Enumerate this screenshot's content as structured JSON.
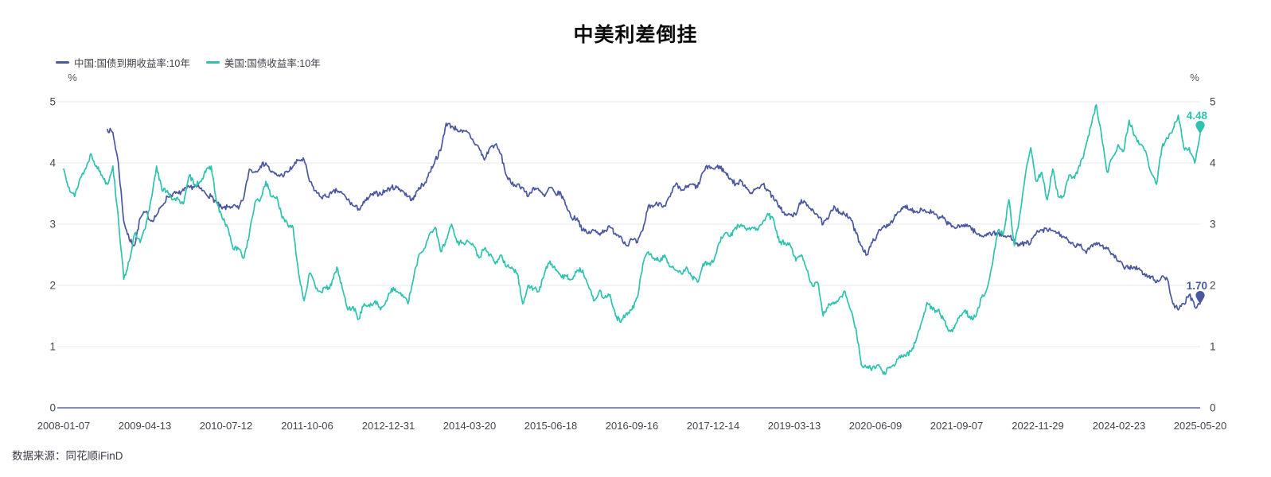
{
  "title": "中美利差倒挂",
  "unit": "%",
  "source": "数据来源：同花顺iFinD",
  "legend": [
    {
      "label": "中国:国债到期收益率:10年",
      "color": "#4A57A0"
    },
    {
      "label": "美国:国债收益率:10年",
      "color": "#2FC2AE"
    }
  ],
  "colors": {
    "china_line": "#4A57A0",
    "us_line": "#2FC2AE",
    "gridline": "#e8e9f0",
    "axis_line": "#5d6b9e",
    "axis_text": "#44454f",
    "title_text": "#0b0b0b"
  },
  "chart_data": {
    "type": "line",
    "title": "中美利差倒挂",
    "ylabel": "%",
    "ylim": [
      0,
      5
    ],
    "y_ticks": [
      0,
      1,
      2,
      3,
      4,
      5
    ],
    "grid": "horizontal",
    "legend_position": "top-left",
    "x_tick_labels": [
      "2008-01-07",
      "2009-04-13",
      "2010-07-12",
      "2011-10-06",
      "2012-12-31",
      "2014-03-20",
      "2015-06-18",
      "2016-09-16",
      "2017-12-14",
      "2019-03-13",
      "2020-06-09",
      "2021-09-07",
      "2022-11-29",
      "2024-02-23",
      "2025-05-20"
    ],
    "cadence": "monthly",
    "series": [
      {
        "name": "中国:国债到期收益率:10年",
        "color": "#4A57A0",
        "start_month": "2008-09",
        "end_month": "2025-05",
        "end_label": "1.70",
        "values": [
          4.55,
          4.5,
          4.0,
          3.05,
          2.75,
          2.66,
          3.1,
          3.2,
          3.05,
          3.15,
          3.3,
          3.45,
          3.5,
          3.5,
          3.55,
          3.6,
          3.62,
          3.58,
          3.5,
          3.45,
          3.35,
          3.25,
          3.28,
          3.3,
          3.25,
          3.45,
          3.9,
          3.85,
          3.95,
          4.0,
          3.85,
          3.8,
          3.8,
          3.85,
          3.95,
          4.05,
          4.05,
          3.7,
          3.55,
          3.45,
          3.45,
          3.5,
          3.55,
          3.5,
          3.4,
          3.3,
          3.25,
          3.35,
          3.45,
          3.5,
          3.5,
          3.55,
          3.6,
          3.6,
          3.55,
          3.45,
          3.4,
          3.6,
          3.65,
          3.85,
          4.05,
          4.2,
          4.65,
          4.6,
          4.55,
          4.5,
          4.5,
          4.35,
          4.25,
          4.05,
          4.25,
          4.3,
          4.15,
          3.8,
          3.65,
          3.65,
          3.6,
          3.45,
          3.6,
          3.55,
          3.45,
          3.6,
          3.5,
          3.5,
          3.3,
          3.1,
          3.1,
          2.9,
          2.85,
          2.9,
          2.85,
          2.9,
          2.95,
          2.85,
          2.8,
          2.65,
          2.75,
          2.7,
          2.9,
          3.3,
          3.3,
          3.35,
          3.3,
          3.45,
          3.65,
          3.55,
          3.6,
          3.65,
          3.6,
          3.85,
          3.95,
          3.9,
          3.95,
          3.85,
          3.75,
          3.65,
          3.7,
          3.6,
          3.5,
          3.6,
          3.65,
          3.55,
          3.4,
          3.3,
          3.15,
          3.15,
          3.15,
          3.4,
          3.3,
          3.25,
          3.15,
          3.0,
          3.1,
          3.3,
          3.2,
          3.15,
          3.1,
          2.85,
          2.65,
          2.5,
          2.7,
          2.85,
          2.95,
          3.0,
          3.1,
          3.2,
          3.3,
          3.25,
          3.2,
          3.25,
          3.2,
          3.2,
          3.1,
          3.1,
          3.0,
          2.95,
          2.95,
          3.0,
          2.95,
          2.85,
          2.8,
          2.85,
          2.85,
          2.85,
          2.8,
          2.8,
          2.75,
          2.65,
          2.7,
          2.7,
          2.85,
          2.9,
          2.9,
          2.9,
          2.85,
          2.8,
          2.7,
          2.65,
          2.65,
          2.55,
          2.65,
          2.7,
          2.65,
          2.6,
          2.5,
          2.4,
          2.3,
          2.3,
          2.3,
          2.25,
          2.15,
          2.15,
          2.05,
          2.15,
          2.1,
          1.7,
          1.6,
          1.7,
          1.85,
          1.65,
          1.7
        ]
      },
      {
        "name": "美国:国债收益率:10年",
        "color": "#2FC2AE",
        "start_month": "2008-01",
        "end_month": "2025-05",
        "end_label": "4.48",
        "values": [
          3.9,
          3.6,
          3.45,
          3.75,
          3.9,
          4.15,
          3.95,
          3.8,
          3.65,
          3.95,
          3.1,
          2.1,
          2.4,
          2.85,
          2.7,
          2.95,
          3.4,
          3.95,
          3.55,
          3.55,
          3.4,
          3.4,
          3.35,
          3.8,
          3.65,
          3.7,
          3.85,
          3.95,
          3.35,
          3.1,
          2.95,
          2.6,
          2.6,
          2.45,
          2.85,
          3.35,
          3.4,
          3.7,
          3.45,
          3.45,
          3.1,
          3.0,
          2.95,
          2.2,
          1.75,
          2.2,
          2.0,
          1.9,
          1.95,
          2.0,
          2.3,
          1.95,
          1.6,
          1.65,
          1.45,
          1.7,
          1.65,
          1.75,
          1.6,
          1.75,
          1.95,
          1.9,
          1.85,
          1.7,
          2.1,
          2.5,
          2.6,
          2.85,
          2.95,
          2.55,
          2.75,
          3.0,
          2.7,
          2.7,
          2.72,
          2.65,
          2.45,
          2.6,
          2.5,
          2.35,
          2.5,
          2.3,
          2.3,
          2.2,
          1.7,
          2.0,
          1.95,
          1.9,
          2.2,
          2.4,
          2.25,
          2.15,
          2.15,
          2.1,
          2.25,
          2.25,
          2.0,
          1.75,
          1.9,
          1.8,
          1.85,
          1.5,
          1.4,
          1.55,
          1.6,
          1.8,
          2.35,
          2.55,
          2.45,
          2.4,
          2.5,
          2.3,
          2.25,
          2.2,
          2.3,
          2.15,
          2.05,
          2.35,
          2.35,
          2.4,
          2.7,
          2.85,
          2.8,
          2.95,
          3.0,
          2.9,
          2.95,
          2.9,
          3.05,
          3.15,
          3.05,
          2.7,
          2.7,
          2.65,
          2.4,
          2.5,
          2.25,
          2.0,
          2.05,
          1.5,
          1.7,
          1.7,
          1.8,
          1.9,
          1.6,
          1.3,
          0.7,
          0.65,
          0.65,
          0.7,
          0.55,
          0.65,
          0.68,
          0.85,
          0.85,
          0.92,
          1.1,
          1.4,
          1.72,
          1.6,
          1.6,
          1.45,
          1.25,
          1.3,
          1.5,
          1.6,
          1.45,
          1.5,
          1.8,
          1.95,
          2.35,
          2.9,
          2.85,
          3.4,
          2.65,
          3.15,
          3.8,
          4.25,
          3.7,
          3.85,
          3.4,
          3.9,
          3.45,
          3.45,
          3.8,
          3.75,
          3.95,
          4.25,
          4.6,
          4.95,
          4.4,
          3.85,
          4.1,
          4.3,
          4.2,
          4.7,
          4.45,
          4.3,
          4.2,
          3.85,
          3.65,
          4.25,
          4.4,
          4.55,
          4.78,
          4.25,
          4.25,
          4.0,
          4.48
        ]
      }
    ]
  }
}
